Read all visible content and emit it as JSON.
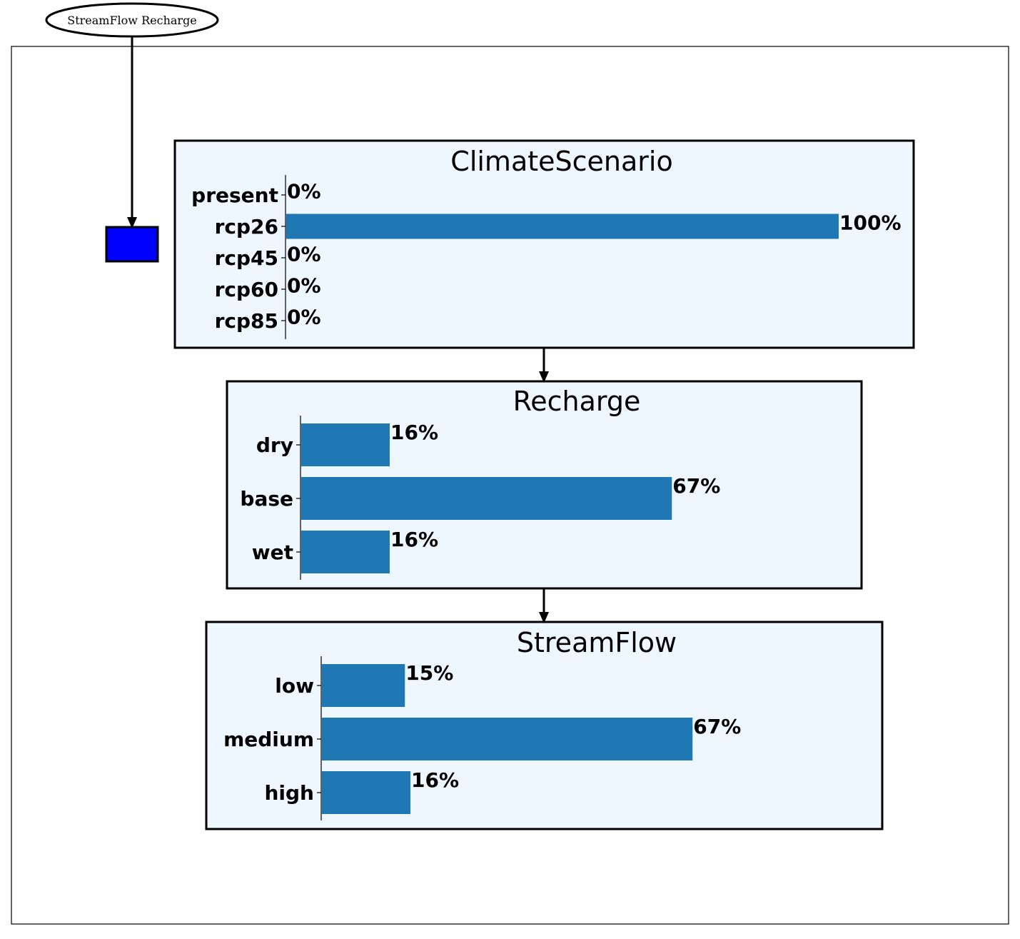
{
  "header_node": {
    "label": "StreamFlow Recharge"
  },
  "colors": {
    "bar": "#1f77b4",
    "panel_bg": "#eef6fe",
    "box": "#0000ff"
  },
  "nodes": [
    {
      "title": "ClimateScenario",
      "chart_data": {
        "type": "bar",
        "orientation": "horizontal",
        "categories": [
          "present",
          "rcp26",
          "rcp45",
          "rcp60",
          "rcp85"
        ],
        "values": [
          0,
          100,
          0,
          0,
          0
        ],
        "labels": [
          "0%",
          "100%",
          "0%",
          "0%",
          "0%"
        ],
        "xlim": [
          0,
          100
        ]
      }
    },
    {
      "title": "Recharge",
      "chart_data": {
        "type": "bar",
        "orientation": "horizontal",
        "categories": [
          "dry",
          "base",
          "wet"
        ],
        "values": [
          16,
          67,
          16
        ],
        "labels": [
          "16%",
          "67%",
          "16%"
        ],
        "xlim": [
          0,
          100
        ]
      }
    },
    {
      "title": "StreamFlow",
      "chart_data": {
        "type": "bar",
        "orientation": "horizontal",
        "categories": [
          "low",
          "medium",
          "high"
        ],
        "values": [
          15,
          67,
          16
        ],
        "labels": [
          "15%",
          "67%",
          "16%"
        ],
        "xlim": [
          0,
          100
        ]
      }
    }
  ]
}
